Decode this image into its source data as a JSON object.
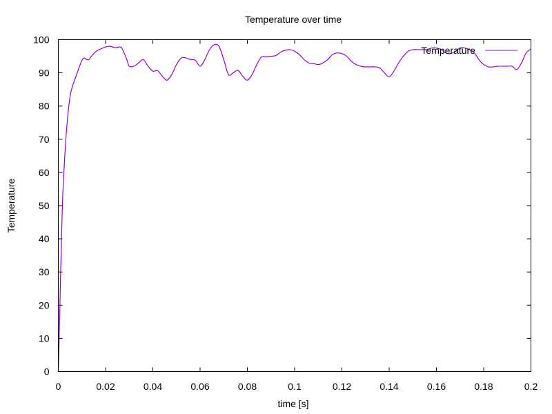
{
  "chart_data": {
    "type": "line",
    "title": "Temperature over time",
    "xlabel": "time [s]",
    "ylabel": "Temperature",
    "xlim": [
      0,
      0.2
    ],
    "ylim": [
      0,
      100
    ],
    "x_ticks": [
      "0",
      "0.02",
      "0.04",
      "0.06",
      "0.08",
      "0.1",
      "0.12",
      "0.14",
      "0.16",
      "0.18",
      "0.2"
    ],
    "y_ticks": [
      "0",
      "10",
      "20",
      "30",
      "40",
      "50",
      "60",
      "70",
      "80",
      "90",
      "100"
    ],
    "grid": false,
    "legend_position": "top-right",
    "series": [
      {
        "name": "Temperature",
        "color": "#9400d3",
        "x": [
          0,
          0.0005,
          0.001,
          0.0015,
          0.002,
          0.003,
          0.004,
          0.005,
          0.006,
          0.007,
          0.008,
          0.009,
          0.01,
          0.011,
          0.012,
          0.013,
          0.014,
          0.016,
          0.018,
          0.02,
          0.022,
          0.024,
          0.026,
          0.027,
          0.029,
          0.03,
          0.032,
          0.034,
          0.036,
          0.038,
          0.04,
          0.042,
          0.044,
          0.046,
          0.048,
          0.05,
          0.052,
          0.054,
          0.056,
          0.058,
          0.06,
          0.062,
          0.064,
          0.066,
          0.068,
          0.07,
          0.072,
          0.074,
          0.076,
          0.078,
          0.08,
          0.082,
          0.084,
          0.086,
          0.088,
          0.09,
          0.092,
          0.094,
          0.096,
          0.098,
          0.1,
          0.102,
          0.104,
          0.106,
          0.108,
          0.11,
          0.112,
          0.114,
          0.116,
          0.118,
          0.12,
          0.122,
          0.124,
          0.126,
          0.128,
          0.13,
          0.132,
          0.134,
          0.136,
          0.138,
          0.14,
          0.142,
          0.144,
          0.146,
          0.148,
          0.15,
          0.152,
          0.154,
          0.156,
          0.158,
          0.16,
          0.162,
          0.164,
          0.166,
          0.168,
          0.17,
          0.172,
          0.174,
          0.176,
          0.178,
          0.18,
          0.182,
          0.184,
          0.186,
          0.188,
          0.19,
          0.192,
          0.194,
          0.196,
          0.198,
          0.2
        ],
        "y": [
          0,
          14,
          30,
          44,
          55,
          68,
          77,
          83,
          86,
          88,
          90,
          92,
          93.8,
          94.5,
          94.0,
          94.0,
          95.0,
          96.5,
          97.2,
          97.8,
          98.0,
          97.6,
          97.8,
          97.3,
          94.0,
          92.0,
          92.0,
          93.0,
          94.0,
          92.0,
          90.5,
          90.7,
          89.0,
          87.8,
          89.5,
          92.5,
          94.5,
          94.5,
          94.0,
          93.8,
          92.0,
          94.0,
          97.0,
          98.5,
          98.0,
          94.0,
          89.5,
          90.0,
          90.8,
          89.0,
          87.8,
          89.5,
          92.5,
          94.8,
          94.8,
          95.0,
          95.2,
          96.2,
          96.8,
          97.0,
          96.5,
          95.5,
          94.0,
          93.0,
          92.8,
          92.5,
          93.0,
          94.0,
          95.5,
          96.0,
          95.8,
          95.0,
          93.5,
          92.5,
          92.0,
          91.8,
          91.8,
          91.8,
          91.5,
          90.0,
          88.8,
          90.5,
          93.0,
          95.0,
          96.5,
          97.0,
          97.0,
          97.0,
          97.0,
          97.5,
          97.5,
          97.0,
          96.0,
          95.8,
          96.5,
          97.5,
          97.5,
          97.0,
          96.0,
          94.0,
          92.5,
          91.8,
          91.8,
          92.0,
          92.0,
          92.0,
          92.0,
          91.0,
          93.0,
          96.0,
          97.2
        ]
      }
    ]
  }
}
